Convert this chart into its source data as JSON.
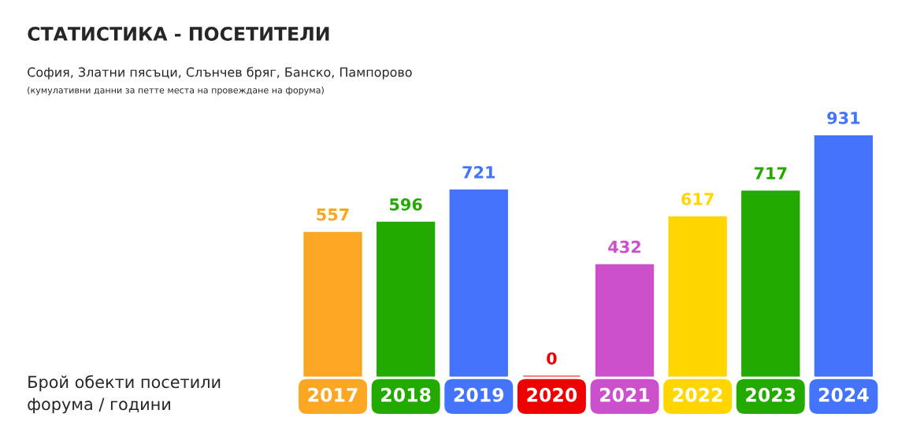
{
  "chart_data": {
    "type": "bar",
    "title": "СТАТИСТИКА - ПОСЕТИТЕЛИ",
    "subtitle": "София, Златни пясъци, Слънчев бряг, Банско, Пампорово",
    "annotations": [
      "(кумулативни данни за петте места на провеждане на форума)",
      "Брой обекти посетили\nфорума / години"
    ],
    "categories": [
      "2017",
      "2018",
      "2019",
      "2020",
      "2021",
      "2022",
      "2023",
      "2024"
    ],
    "values": [
      557,
      596,
      721,
      0,
      432,
      617,
      717,
      931
    ],
    "colors": [
      "#fba724",
      "#22aa00",
      "#4374fb",
      "#ee0000",
      "#cc4fcc",
      "#ffd600",
      "#22aa00",
      "#4374fb"
    ],
    "data_labels": true,
    "grid": false,
    "legend": false
  }
}
